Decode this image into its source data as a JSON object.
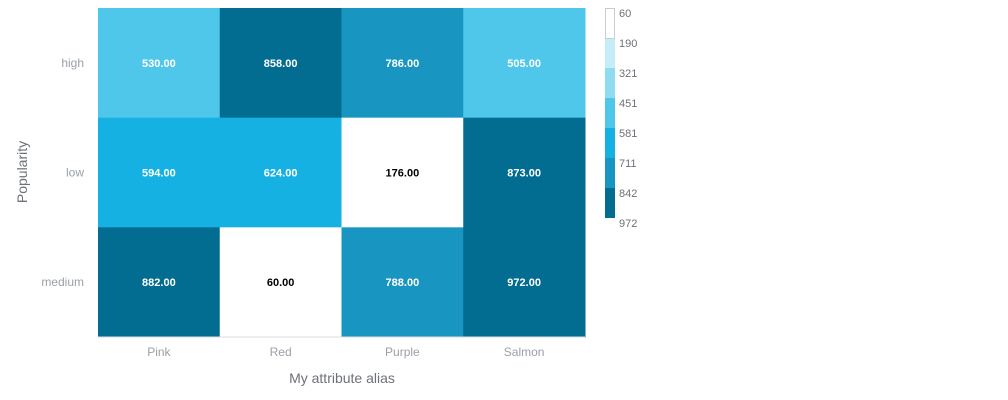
{
  "chart_data": {
    "type": "heatmap",
    "xlabel": "My attribute alias",
    "ylabel": "Popularity",
    "x_categories": [
      "Pink",
      "Red",
      "Purple",
      "Salmon"
    ],
    "y_categories": [
      "high",
      "low",
      "medium"
    ],
    "values": [
      [
        530,
        858,
        786,
        505
      ],
      [
        594,
        624,
        176,
        873
      ],
      [
        882,
        60,
        788,
        972
      ]
    ],
    "value_labels": [
      [
        "530.00",
        "858.00",
        "786.00",
        "505.00"
      ],
      [
        "594.00",
        "624.00",
        "176.00",
        "873.00"
      ],
      [
        "882.00",
        "60.00",
        "788.00",
        "972.00"
      ]
    ],
    "legend": {
      "placement": "right",
      "labels": [
        "60",
        "190",
        "321",
        "451",
        "581",
        "711",
        "842",
        "972"
      ],
      "bins": [
        60,
        190,
        321,
        451,
        581,
        711,
        842,
        972
      ],
      "colors": [
        "#ffffff",
        "#c6ecf8",
        "#8fdbf0",
        "#4fc7ea",
        "#14b1e2",
        "#1895c0",
        "#036d91"
      ]
    },
    "grid": false
  }
}
